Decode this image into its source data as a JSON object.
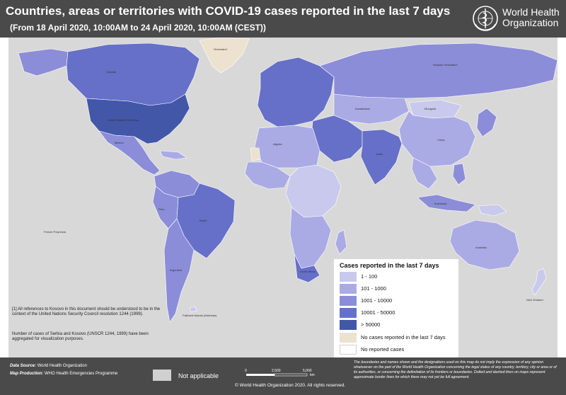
{
  "header": {
    "title": "Countries, areas or territories with COVID-19 cases reported in the last 7 days",
    "subtitle": "(From 18 April 2020, 10:00AM  to 24 April 2020, 10:00AM (CEST))",
    "org_name_line1": "World Health",
    "org_name_line2": "Organization",
    "logo_icon": "who-emblem-icon"
  },
  "notes": {
    "kosovo": "[1] All references to Kosovo in this document should be understood to be in the context of the United Nations Security Council resolution 1244 (1999).",
    "serbia": "Number of cases of Serbia and Kosovo (UNSCR 1244, 1999) have been aggregated for visualization purposes."
  },
  "legend": {
    "title": "Cases reported in the last 7 days",
    "items": [
      {
        "label": "1 - 100",
        "color": "#c9c9ee"
      },
      {
        "label": "101 - 1000",
        "color": "#aaabe5"
      },
      {
        "label": "1001 - 10000",
        "color": "#8b8dd9"
      },
      {
        "label": "10001 - 50000",
        "color": "#6670c8"
      },
      {
        "label": "> 50000",
        "color": "#4257a8"
      },
      {
        "label": "No cases reported in the last 7 days",
        "color": "#ede2cf"
      },
      {
        "label": "No reported cases",
        "color": "#ffffff"
      }
    ]
  },
  "map": {
    "ocean_color": "#d8d8d8",
    "labels": {
      "usa": "United States of America",
      "canada": "Canada",
      "brazil": "Brazil",
      "russia": "Russian Federation",
      "australia": "Australia",
      "china": "China",
      "india": "India",
      "greenland": "Greenland",
      "mexico": "Mexico",
      "argentina": "Argentina",
      "peru": "Peru",
      "kazakhstan": "Kazakhstan",
      "algeria": "Algeria",
      "mongolia": "Mongolia",
      "indonesia": "Indonesia",
      "south_africa": "South Africa",
      "new_zealand": "New Zealand",
      "french_polynesia": "French Polynesia",
      "falkland": "Falkland Islands (Malvinas)"
    }
  },
  "footer": {
    "data_source_key": "Data Source:",
    "data_source_val": "World Health Organization",
    "map_production_key": "Map Production:",
    "map_production_val": "WHO Health Emergencies Programme",
    "not_applicable": "Not applicable",
    "not_applicable_color": "#d0d0d0",
    "scale_0": "0",
    "scale_1": "2,500",
    "scale_2": "5,000",
    "scale_unit": "km",
    "copyright": "© World Health Organization  2020. All rights reserved.",
    "disclaimer": "The boundaries and names shown and the designations used on this map do not imply the expression of any opinion whatsoever on the part of the World Health Organization concerning the legal status of any country, territory, city or area or of its authorities, or concerning the delimitation of its frontiers or boundaries. Dotted and dashed lines on maps represent approximate border lines for which there may not yet be full agreement."
  }
}
